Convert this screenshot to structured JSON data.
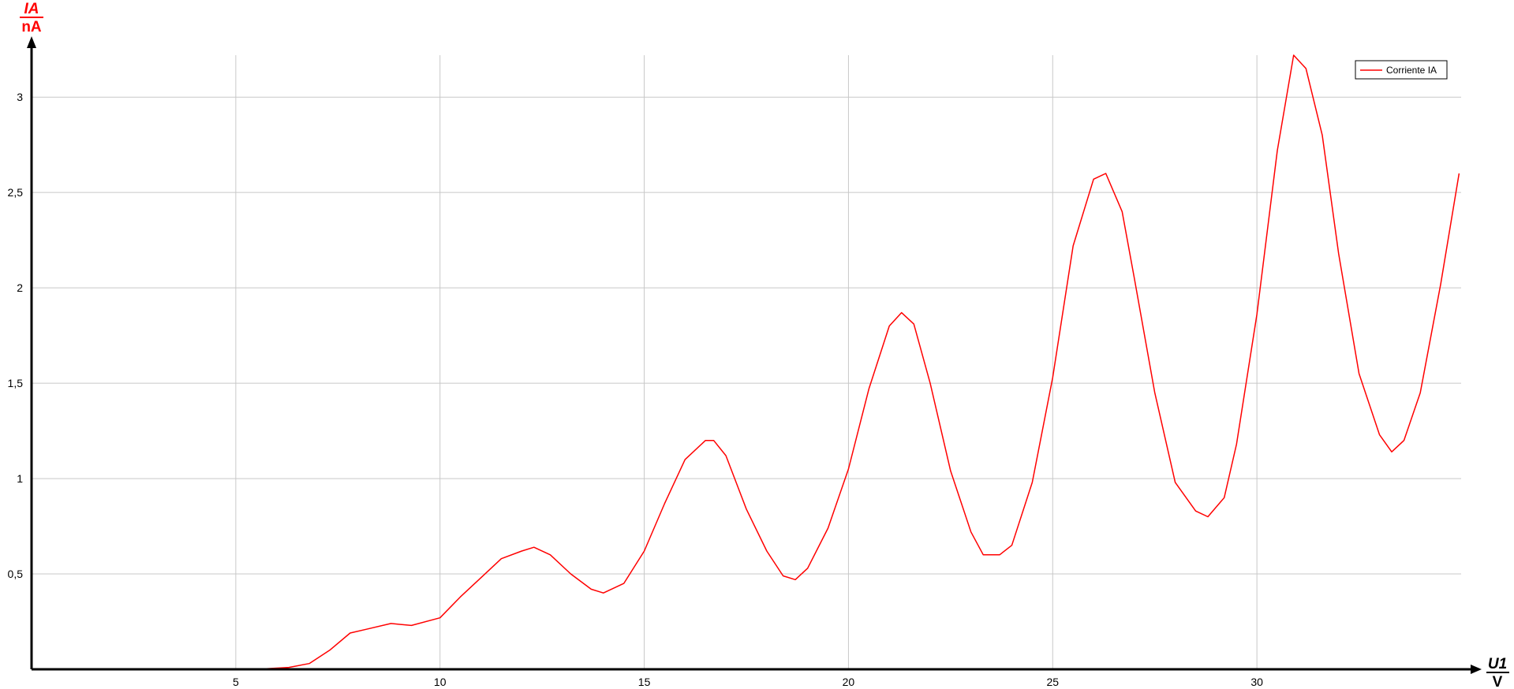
{
  "colors": {
    "series": "#ff0000",
    "y_label": "#ff0000",
    "x_label": "#000000",
    "grid": "#c8c8c8",
    "axis": "#000000",
    "background": "#ffffff"
  },
  "chart_data": {
    "type": "line",
    "title": "",
    "y_axis": {
      "var": "IA",
      "unit": "nA"
    },
    "x_axis": {
      "var": "U1",
      "unit": "V"
    },
    "xlim": [
      0,
      35
    ],
    "ylim": [
      0,
      3.22
    ],
    "grid": true,
    "legend_position": "top-right",
    "x_ticks": [
      {
        "value": 5,
        "label": "5"
      },
      {
        "value": 10,
        "label": "10"
      },
      {
        "value": 15,
        "label": "15"
      },
      {
        "value": 20,
        "label": "20"
      },
      {
        "value": 25,
        "label": "25"
      },
      {
        "value": 30,
        "label": "30"
      }
    ],
    "y_ticks": [
      {
        "value": 0.5,
        "label": "0,5"
      },
      {
        "value": 1,
        "label": "1"
      },
      {
        "value": 1.5,
        "label": "1,5"
      },
      {
        "value": 2,
        "label": "2"
      },
      {
        "value": 2.5,
        "label": "2,5"
      },
      {
        "value": 3,
        "label": "3"
      }
    ],
    "series": [
      {
        "name": "Corriente IA",
        "x": [
          0,
          5.5,
          6.3,
          6.8,
          7.3,
          7.8,
          8.2,
          8.8,
          9.3,
          10.0,
          10.5,
          11.0,
          11.5,
          12.0,
          12.3,
          12.7,
          13.2,
          13.7,
          14.0,
          14.5,
          15.0,
          15.5,
          16.0,
          16.5,
          16.7,
          17.0,
          17.5,
          18.0,
          18.4,
          18.7,
          19.0,
          19.5,
          20.0,
          20.5,
          21.0,
          21.3,
          21.6,
          22.0,
          22.5,
          23.0,
          23.3,
          23.7,
          24.0,
          24.5,
          25.0,
          25.5,
          26.0,
          26.3,
          26.7,
          27.0,
          27.5,
          28.0,
          28.5,
          28.8,
          29.2,
          29.5,
          30.0,
          30.5,
          30.9,
          31.2,
          31.6,
          32.0,
          32.5,
          33.0,
          33.3,
          33.6,
          34.0,
          34.5,
          34.95
        ],
        "y": [
          0,
          0,
          0.01,
          0.03,
          0.1,
          0.19,
          0.21,
          0.24,
          0.23,
          0.27,
          0.38,
          0.48,
          0.58,
          0.62,
          0.64,
          0.6,
          0.5,
          0.42,
          0.4,
          0.45,
          0.62,
          0.87,
          1.1,
          1.2,
          1.2,
          1.12,
          0.84,
          0.62,
          0.49,
          0.47,
          0.53,
          0.74,
          1.05,
          1.47,
          1.8,
          1.87,
          1.81,
          1.5,
          1.04,
          0.72,
          0.6,
          0.6,
          0.65,
          0.98,
          1.53,
          2.22,
          2.57,
          2.6,
          2.4,
          2.05,
          1.45,
          0.98,
          0.83,
          0.8,
          0.9,
          1.18,
          1.86,
          2.72,
          3.22,
          3.15,
          2.8,
          2.18,
          1.55,
          1.23,
          1.14,
          1.2,
          1.45,
          2.02,
          2.6
        ]
      }
    ]
  }
}
